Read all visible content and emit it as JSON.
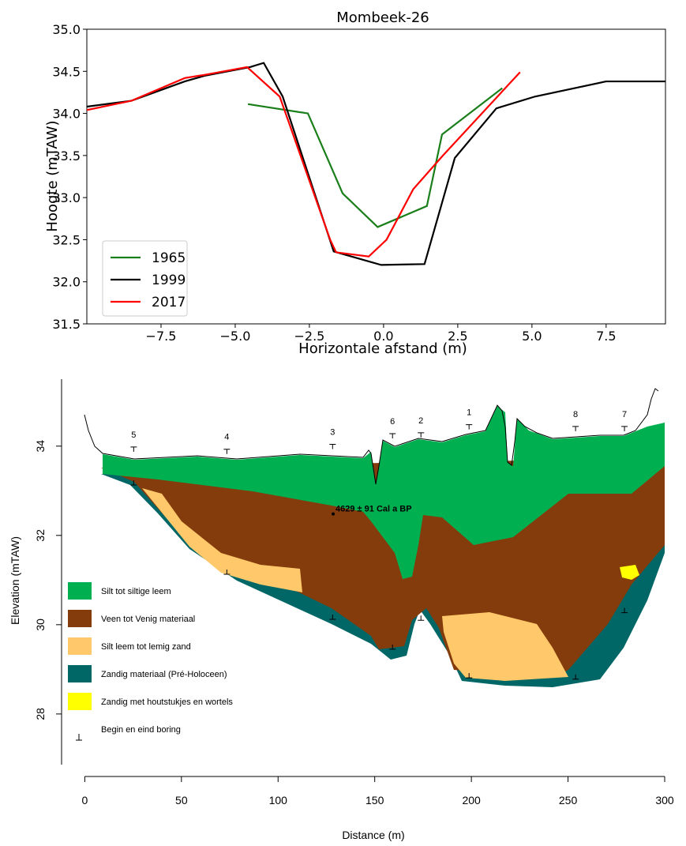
{
  "chart_data": [
    {
      "type": "line",
      "title": "Mombeek-26",
      "x_label": "Horizontale afstand (m)",
      "y_label": "Hoogte (mTAW)",
      "xlim": [
        -10,
        9.5
      ],
      "ylim": [
        31.5,
        35
      ],
      "xticks": [
        {
          "value": -7.5,
          "label": "−7.5"
        },
        {
          "value": -5,
          "label": "−5.0"
        },
        {
          "value": -2.5,
          "label": "−2.5"
        },
        {
          "value": 0,
          "label": "0.0"
        },
        2.5,
        {
          "value": 5,
          "label": "5.0"
        },
        7.5
      ],
      "yticks": [
        31.5,
        {
          "value": 32,
          "label": "32.0"
        },
        32.5,
        {
          "value": 33,
          "label": "33.0"
        },
        33.5,
        {
          "value": 34,
          "label": "34.0"
        },
        34.5,
        {
          "value": 35,
          "label": "35.0"
        }
      ],
      "legend": "lower left",
      "series": [
        {
          "name": "1965",
          "color": "#1a7f1a",
          "x": [
            -4.57,
            -2.55,
            -1.38,
            -0.2,
            1.46,
            1.97,
            4.0
          ],
          "values": [
            34.11,
            34.0,
            33.05,
            32.65,
            32.9,
            33.75,
            34.3
          ]
        },
        {
          "name": "1999",
          "color": "#000000",
          "x": [
            -10,
            -8.5,
            -6.7,
            -6.0,
            -4.5,
            -4.04,
            -3.4,
            -1.68,
            -0.08,
            1.38,
            2.4,
            3.8,
            5.1,
            7.5,
            9.5
          ],
          "values": [
            34.08,
            34.15,
            34.38,
            34.45,
            34.55,
            34.6,
            34.2,
            32.36,
            32.2,
            32.21,
            33.47,
            34.06,
            34.2,
            34.38,
            34.38
          ]
        },
        {
          "name": "2017",
          "color": "#ff0000",
          "x": [
            -10,
            -8.5,
            -6.7,
            -6.0,
            -4.6,
            -3.5,
            -1.8,
            -1.6,
            -0.5,
            0.1,
            1.0,
            2.0,
            4.6
          ],
          "values": [
            34.04,
            34.15,
            34.42,
            34.46,
            34.55,
            34.2,
            32.5,
            32.35,
            32.3,
            32.5,
            33.1,
            33.5,
            34.49
          ]
        }
      ]
    },
    {
      "type": "cross_section",
      "x_label": "Distance (m)",
      "y_label": "Elevation (mTAW)",
      "xlim": [
        -12,
        300
      ],
      "ylim": [
        26.6,
        35.5
      ],
      "xticks": [
        0,
        50,
        100,
        150,
        200,
        250,
        300
      ],
      "yticks": [
        28,
        30,
        32,
        34
      ],
      "legend": [
        {
          "name": "Silt tot siltige leem",
          "color": "#00b050"
        },
        {
          "name": "Veen tot Venig materiaal",
          "color": "#843c0c"
        },
        {
          "name": "Silt leem tot lemig zand",
          "color": "#ffc96b"
        },
        {
          "name": "Zandig materiaal (Pré-Holoceen)",
          "color": "#006666"
        },
        {
          "name": "Zandig met houtstukjes en wortels",
          "color": "#ffff00"
        },
        {
          "name": "Begin en eind boring"
        }
      ],
      "borings": [
        {
          "label": "5",
          "x": 25.3,
          "top": 33.98,
          "bottom": 33.13
        },
        {
          "label": "4",
          "x": 73.5,
          "top": 33.93,
          "bottom": 31.13
        },
        {
          "label": "3",
          "x": 128.2,
          "top": 34.04,
          "bottom": 30.12
        },
        {
          "label": "6",
          "x": 159.2,
          "top": 34.28,
          "bottom": 29.45
        },
        {
          "label": "2",
          "x": 173.9,
          "top": 34.3,
          "bottom": 30.1
        },
        {
          "label": "1",
          "x": 198.8,
          "top": 34.48,
          "bottom": 28.81
        },
        {
          "label": "8",
          "x": 253.9,
          "top": 34.44,
          "bottom": 28.78
        },
        {
          "label": "7",
          "x": 279.2,
          "top": 34.44,
          "bottom": 30.27
        }
      ],
      "annotation": {
        "text": "4629 ± 91 Cal a BP",
        "x": 128.5,
        "y": 32.48
      }
    }
  ]
}
